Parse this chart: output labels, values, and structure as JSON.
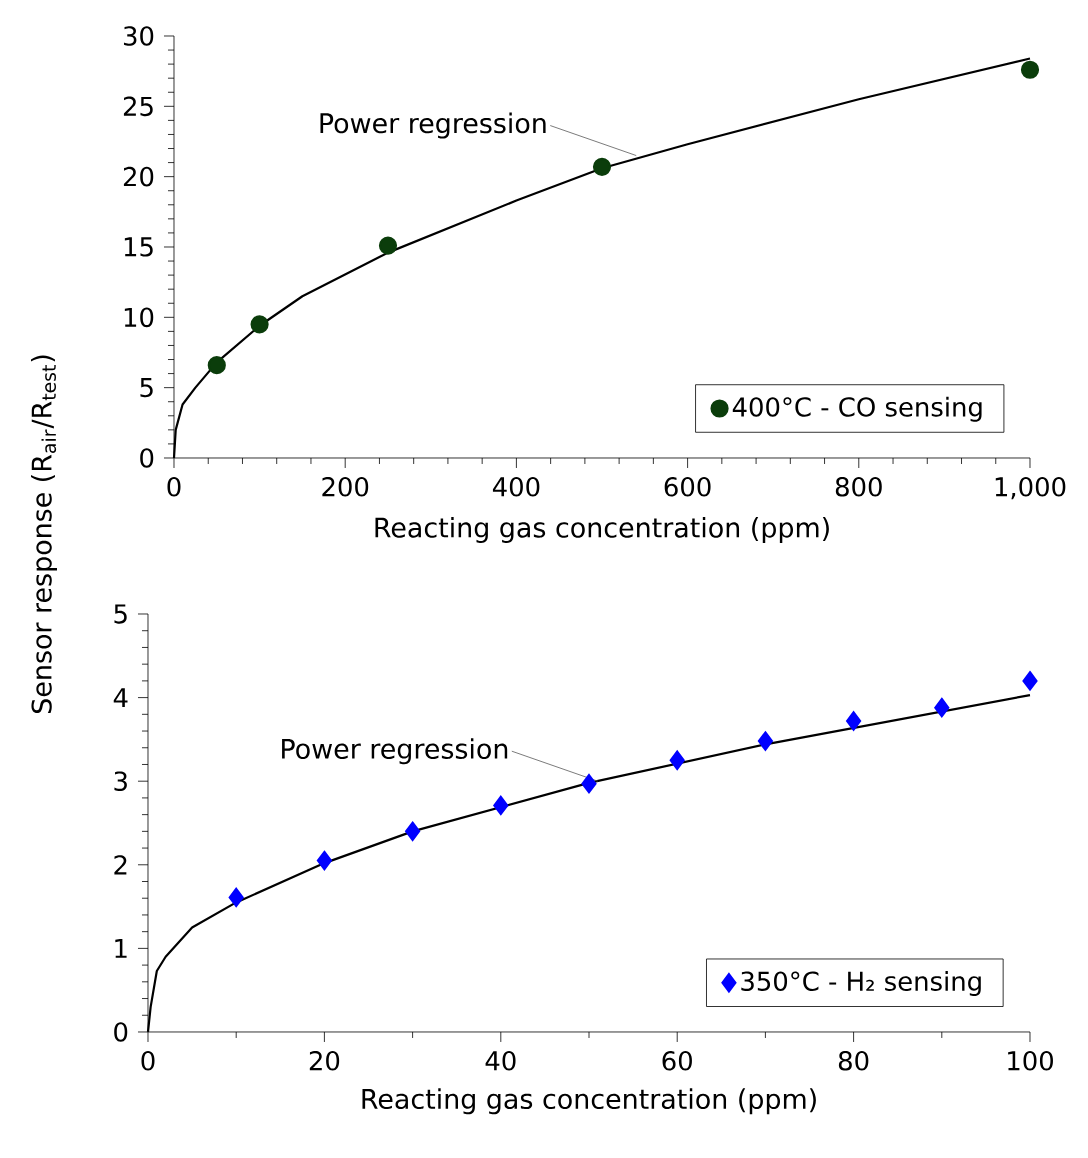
{
  "chart_data": [
    {
      "type": "scatter",
      "ylabel": "Sensor response (R$_{air}$/R$_{test}$)",
      "xlabel": "Reacting gas concentration (ppm)",
      "xlim": [
        0,
        1000
      ],
      "ylim": [
        0,
        30
      ],
      "xticks": [
        0,
        200,
        400,
        600,
        800,
        {
          "value": 1000,
          "label": "1,000"
        }
      ],
      "yticks": [
        0,
        5,
        10,
        15,
        20,
        25,
        30
      ],
      "legend": "bottom right",
      "grid": false,
      "annotations": [
        {
          "text": "Power regression",
          "x": 540,
          "y": 21.5
        }
      ],
      "series": [
        {
          "type": "line",
          "color": "#000000",
          "marker": "none",
          "line_style": "solid",
          "x": [
            0,
            2,
            10,
            25,
            50,
            100,
            150,
            250,
            400,
            500,
            600,
            800,
            1000
          ],
          "values": [
            0,
            2.0,
            3.8,
            5.0,
            6.8,
            9.4,
            11.5,
            14.6,
            18.3,
            20.6,
            22.3,
            25.5,
            28.4
          ]
        },
        {
          "type": "scatter",
          "name": "400°C - CO sensing",
          "color": "#0b3d0b",
          "marker": "circle",
          "x": [
            50,
            100,
            250,
            500,
            1000
          ],
          "values": [
            6.6,
            9.5,
            15.1,
            20.7,
            27.6
          ]
        }
      ]
    },
    {
      "type": "scatter",
      "xlabel": "Reacting gas concentration (ppm)",
      "xlim": [
        0,
        100
      ],
      "ylim": [
        0,
        5
      ],
      "xticks": [
        0,
        20,
        40,
        60,
        80,
        100
      ],
      "yticks": [
        0,
        1,
        2,
        3,
        4,
        5
      ],
      "legend": "bottom right",
      "grid": false,
      "annotations": [
        {
          "text": "Power regression",
          "x": 51,
          "y": 3.0
        }
      ],
      "series": [
        {
          "type": "line",
          "color": "#000000",
          "marker": "none",
          "line_style": "solid",
          "x": [
            0,
            0.3,
            1,
            2,
            5,
            10,
            20,
            30,
            50,
            70,
            100
          ],
          "values": [
            0,
            0.3,
            0.73,
            0.9,
            1.25,
            1.55,
            2.02,
            2.4,
            2.98,
            3.44,
            4.03
          ]
        },
        {
          "type": "scatter",
          "name": "350°C - H₂ sensing",
          "color": "#0000ff",
          "marker": "diamond",
          "x": [
            10,
            20,
            30,
            40,
            50,
            60,
            70,
            80,
            90,
            100
          ],
          "values": [
            1.61,
            2.05,
            2.4,
            2.71,
            2.97,
            3.25,
            3.48,
            3.72,
            3.88,
            4.2
          ]
        }
      ]
    }
  ]
}
